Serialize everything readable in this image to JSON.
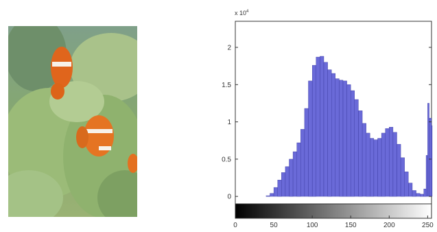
{
  "photo": {
    "subject_icon": "clownfish-in-sea-anemone"
  },
  "chart_data": {
    "type": "bar",
    "title": "",
    "xlabel": "",
    "ylabel": "",
    "y_scale_note": "x 10",
    "y_scale_exponent": "4",
    "xlim": [
      0,
      255
    ],
    "ylim": [
      -0.1,
      2.35
    ],
    "x_ticks": [
      0,
      50,
      100,
      150,
      200,
      250
    ],
    "x_tick_labels": [
      "0",
      "50",
      "100",
      "150",
      "200",
      "250"
    ],
    "y_ticks": [
      0,
      0.5,
      1,
      1.5,
      2
    ],
    "y_tick_labels": [
      "0",
      "0.5",
      "1",
      "1.5",
      "2"
    ],
    "grid": false,
    "colors": {
      "bars": "#6a6ad8",
      "bar_edge": "#3a3aa0",
      "axis": "#333333"
    },
    "colorbar": {
      "from": "#000000",
      "to": "#ffffff",
      "range": [
        0,
        255
      ]
    },
    "series": [
      {
        "x": [
          0,
          5,
          10,
          15,
          20,
          25,
          30,
          35,
          40,
          45,
          50,
          55,
          60,
          65,
          70,
          75,
          80,
          85,
          90,
          95,
          100,
          105,
          110,
          115,
          120,
          125,
          130,
          135,
          140,
          145,
          150,
          155,
          160,
          165,
          170,
          175,
          180,
          185,
          190,
          195,
          200,
          205,
          210,
          215,
          220,
          225,
          230,
          235,
          240,
          245,
          248,
          250,
          252,
          255
        ],
        "values": [
          0,
          0,
          0,
          0,
          0,
          0,
          0,
          0,
          0.01,
          0.04,
          0.12,
          0.22,
          0.32,
          0.4,
          0.5,
          0.6,
          0.72,
          0.9,
          1.18,
          1.55,
          1.76,
          1.87,
          1.88,
          1.8,
          1.7,
          1.65,
          1.58,
          1.56,
          1.55,
          1.5,
          1.42,
          1.3,
          1.15,
          0.98,
          0.85,
          0.78,
          0.76,
          0.78,
          0.85,
          0.91,
          0.93,
          0.86,
          0.7,
          0.52,
          0.33,
          0.18,
          0.08,
          0.04,
          0.03,
          0.1,
          0.55,
          1.25,
          1.05,
          0.95
        ]
      }
    ]
  }
}
